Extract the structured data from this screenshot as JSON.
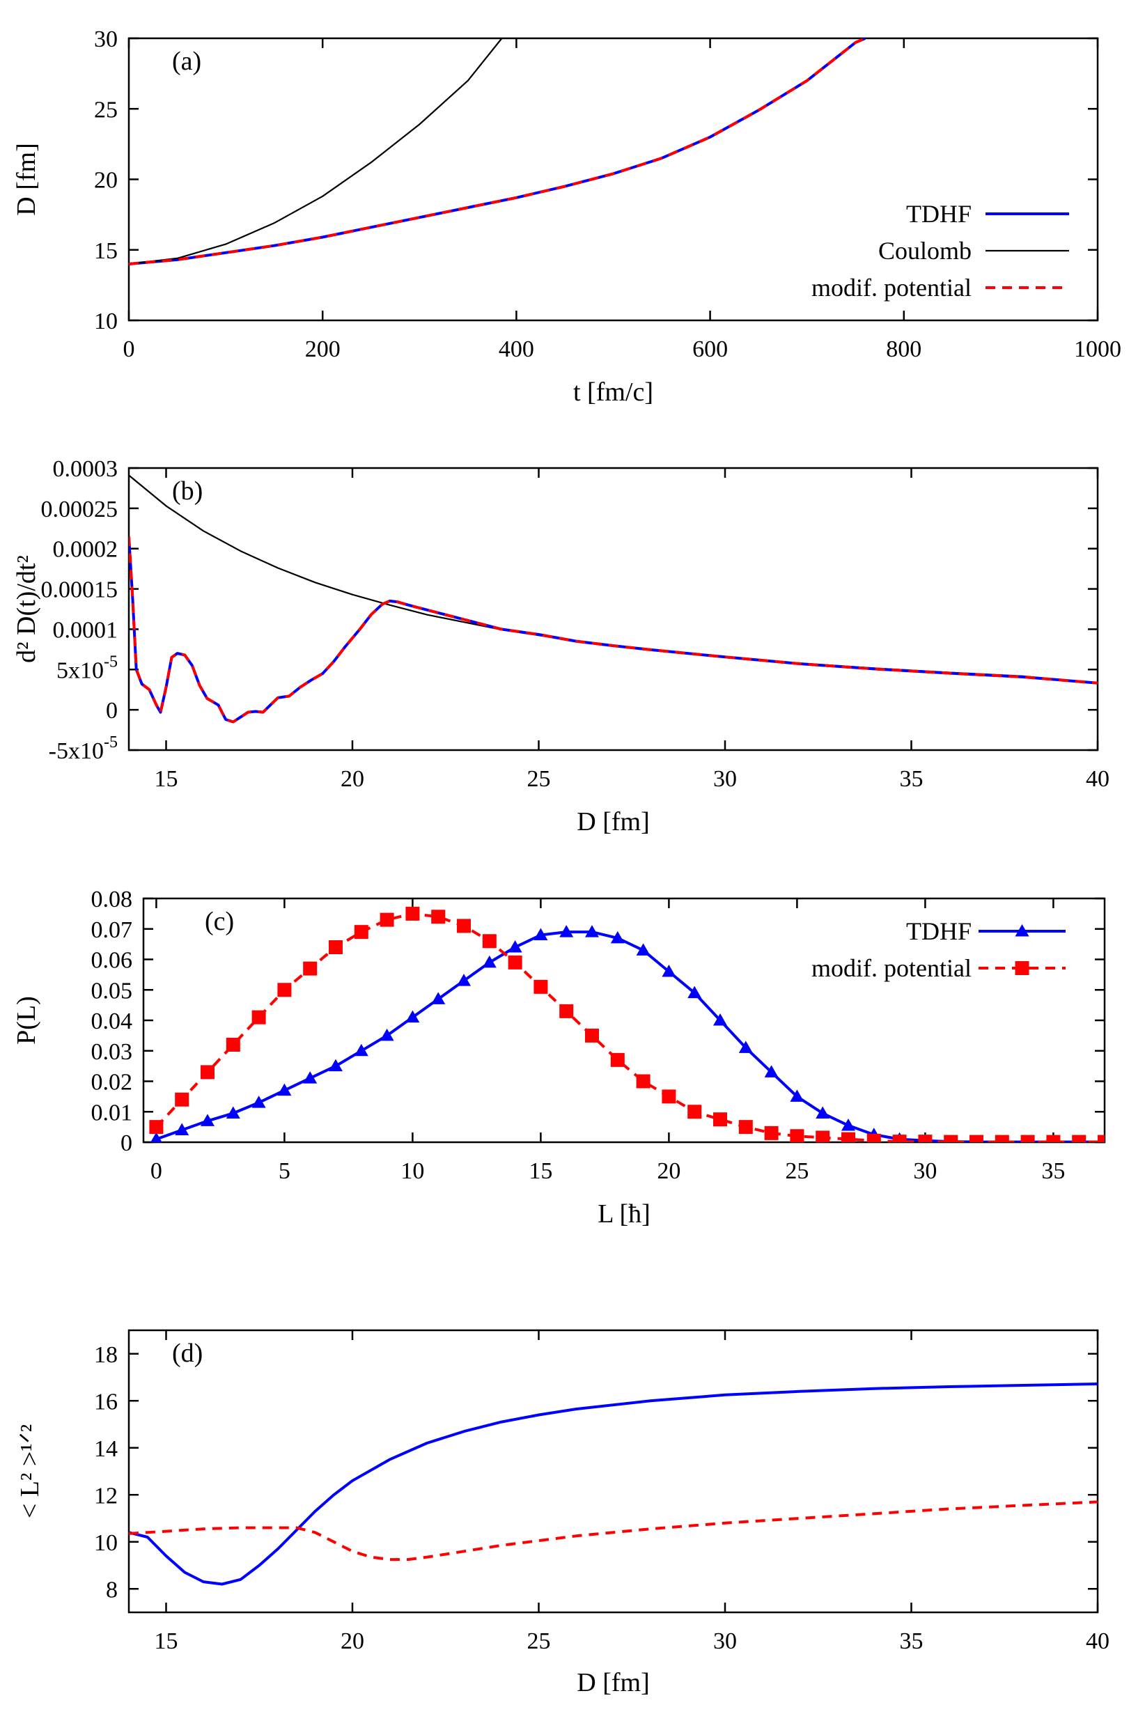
{
  "figure": {
    "colors": {
      "tdhf": "#0000ff",
      "coulomb": "#000000",
      "modif": "#ff0000"
    }
  },
  "chart_data": [
    {
      "id": "a",
      "type": "line",
      "panel_label": "(a)",
      "xlabel": "t [fm/c]",
      "ylabel": "D [fm]",
      "xlim": [
        0,
        1000
      ],
      "ylim": [
        10,
        30
      ],
      "xticks": [
        0,
        200,
        400,
        600,
        800,
        1000
      ],
      "yticks": [
        10,
        15,
        20,
        25,
        30
      ],
      "xtick_labels": [
        "0",
        "200",
        "400",
        "600",
        "800",
        "1000"
      ],
      "ytick_labels": [
        "10",
        "15",
        "20",
        "25",
        "30"
      ],
      "legend_position": "bottom-right",
      "series": [
        {
          "name": "TDHF",
          "style": "solid",
          "x": [
            0,
            50,
            100,
            150,
            200,
            250,
            300,
            350,
            400,
            450,
            500,
            550,
            600,
            650,
            700,
            750,
            760
          ],
          "y": [
            14.0,
            14.3,
            14.8,
            15.3,
            15.9,
            16.6,
            17.3,
            18.0,
            18.7,
            19.5,
            20.4,
            21.5,
            23.0,
            24.9,
            27.0,
            29.7,
            30.0
          ]
        },
        {
          "name": "Coulomb",
          "style": "solid",
          "x": [
            0,
            50,
            100,
            150,
            200,
            250,
            300,
            350,
            385
          ],
          "y": [
            14.0,
            14.4,
            15.4,
            16.9,
            18.8,
            21.2,
            23.9,
            27.0,
            30.0
          ]
        },
        {
          "name": "modif. potential",
          "style": "dashed",
          "x": [
            0,
            50,
            100,
            150,
            200,
            250,
            300,
            350,
            400,
            450,
            500,
            550,
            600,
            650,
            700,
            750,
            760
          ],
          "y": [
            14.0,
            14.3,
            14.8,
            15.3,
            15.9,
            16.6,
            17.3,
            18.0,
            18.7,
            19.5,
            20.4,
            21.5,
            23.0,
            24.9,
            27.0,
            29.7,
            30.0
          ]
        }
      ]
    },
    {
      "id": "b",
      "type": "line",
      "panel_label": "(b)",
      "xlabel": "D [fm]",
      "ylabel": "d² D(t)/dt²",
      "xlim": [
        14,
        40
      ],
      "ylim": [
        -5e-05,
        0.0003
      ],
      "xticks": [
        15,
        20,
        25,
        30,
        35,
        40
      ],
      "yticks": [
        -5e-05,
        0,
        5e-05,
        0.0001,
        0.00015,
        0.0002,
        0.00025,
        0.0003
      ],
      "xtick_labels": [
        "15",
        "20",
        "25",
        "30",
        "35",
        "40"
      ],
      "ytick_labels": [
        "-5x10",
        "0",
        "5x10",
        "0.0001",
        "0.00015",
        "0.0002",
        "0.00025",
        "0.0003"
      ],
      "ytick_exponents": [
        "-5",
        "",
        "-5",
        "",
        "",
        "",
        "",
        ""
      ],
      "series": [
        {
          "name": "Coulomb",
          "style": "solid",
          "x": [
            14,
            15,
            16,
            17,
            18,
            19,
            20,
            21,
            22,
            24,
            26,
            28,
            30,
            32,
            34,
            36,
            38,
            40
          ],
          "y": [
            0.000291,
            0.000253,
            0.000222,
            0.000197,
            0.000176,
            0.000158,
            0.000143,
            0.00013,
            0.000118,
            9.95e-05,
            8.53e-05,
            7.41e-05,
            6.52e-05,
            5.78e-05,
            5.16e-05,
            4.64e-05,
            4.18e-05,
            3.29e-05
          ]
        },
        {
          "name": "TDHF",
          "style": "solid",
          "x": [
            14.0,
            14.1,
            14.2,
            14.35,
            14.55,
            14.75,
            14.85,
            15.0,
            15.15,
            15.3,
            15.5,
            15.7,
            15.9,
            16.1,
            16.4,
            16.6,
            16.8,
            17.0,
            17.2,
            17.4,
            17.6,
            17.8,
            18.0,
            18.3,
            18.6,
            18.9,
            19.2,
            19.5,
            19.8,
            20.2,
            20.5,
            20.8,
            21.0,
            21.2,
            21.5,
            22.0,
            23.0,
            24.0,
            25.0,
            26.0,
            27.0,
            28.0,
            30.0,
            32.0,
            34.0,
            36.0,
            38.0,
            40.0
          ],
          "y": [
            0.000215,
            0.00014,
            5e-05,
            3.2e-05,
            2.5e-05,
            5e-06,
            -3e-06,
            2.8e-05,
            6.5e-05,
            7e-05,
            6.8e-05,
            5.5e-05,
            3e-05,
            1.4e-05,
            6e-06,
            -1.2e-05,
            -1.5e-05,
            -9e-06,
            -3e-06,
            -2e-06,
            -3e-06,
            6e-06,
            1.5e-05,
            1.7e-05,
            2.8e-05,
            3.7e-05,
            4.5e-05,
            6e-05,
            7.8e-05,
            0.0001,
            0.000118,
            0.000131,
            0.000135,
            0.000134,
            0.00013,
            0.000124,
            0.000112,
            0.0001,
            9.35e-05,
            8.52e-05,
            7.95e-05,
            7.45e-05,
            6.55e-05,
            5.72e-05,
            5.08e-05,
            4.55e-05,
            4.07e-05,
            3.32e-05
          ]
        },
        {
          "name": "modif. potential",
          "style": "dashed",
          "x": [
            14.0,
            14.1,
            14.2,
            14.35,
            14.55,
            14.75,
            14.85,
            15.0,
            15.15,
            15.3,
            15.5,
            15.7,
            15.9,
            16.1,
            16.4,
            16.6,
            16.8,
            17.0,
            17.2,
            17.4,
            17.6,
            17.8,
            18.0,
            18.3,
            18.6,
            18.9,
            19.2,
            19.5,
            19.8,
            20.2,
            20.5,
            20.8,
            21.0,
            21.2,
            21.5,
            22.0,
            23.0,
            24.0,
            25.0,
            26.0,
            27.0,
            28.0,
            30.0,
            32.0,
            34.0,
            36.0,
            38.0,
            40.0
          ],
          "y": [
            0.000215,
            0.00014,
            5e-05,
            3.2e-05,
            2.5e-05,
            5e-06,
            -3e-06,
            2.8e-05,
            6.5e-05,
            7e-05,
            6.8e-05,
            5.5e-05,
            3e-05,
            1.4e-05,
            6e-06,
            -1.2e-05,
            -1.5e-05,
            -9e-06,
            -3e-06,
            -2e-06,
            -3e-06,
            6e-06,
            1.5e-05,
            1.7e-05,
            2.8e-05,
            3.7e-05,
            4.5e-05,
            6e-05,
            7.8e-05,
            0.0001,
            0.000118,
            0.000131,
            0.000135,
            0.000134,
            0.00013,
            0.000124,
            0.000112,
            0.0001,
            9.35e-05,
            8.52e-05,
            7.95e-05,
            7.45e-05,
            6.55e-05,
            5.72e-05,
            5.08e-05,
            4.55e-05,
            4.07e-05,
            3.32e-05
          ]
        }
      ]
    },
    {
      "id": "c",
      "type": "line",
      "panel_label": "(c)",
      "xlabel": "L [ħ]",
      "ylabel": "P(L)",
      "xlim": [
        -0.5,
        37
      ],
      "ylim": [
        0,
        0.08
      ],
      "xticks": [
        0,
        5,
        10,
        15,
        20,
        25,
        30,
        35
      ],
      "yticks": [
        0,
        0.01,
        0.02,
        0.03,
        0.04,
        0.05,
        0.06,
        0.07,
        0.08
      ],
      "xtick_labels": [
        "0",
        "5",
        "10",
        "15",
        "20",
        "25",
        "30",
        "35"
      ],
      "ytick_labels": [
        "0",
        "0.01",
        "0.02",
        "0.03",
        "0.04",
        "0.05",
        "0.06",
        "0.07",
        "0.08"
      ],
      "legend_position": "top-right",
      "series": [
        {
          "name": "TDHF",
          "style": "solid",
          "marker": "triangle",
          "x": [
            0,
            1,
            2,
            3,
            4,
            5,
            6,
            7,
            8,
            9,
            10,
            11,
            12,
            13,
            14,
            15,
            16,
            17,
            18,
            19,
            20,
            21,
            22,
            23,
            24,
            25,
            26,
            27,
            28,
            29,
            30,
            31,
            32,
            33,
            34,
            35,
            36,
            37
          ],
          "y": [
            0.001,
            0.004,
            0.007,
            0.0095,
            0.013,
            0.017,
            0.021,
            0.025,
            0.03,
            0.035,
            0.041,
            0.047,
            0.053,
            0.059,
            0.064,
            0.068,
            0.069,
            0.069,
            0.067,
            0.063,
            0.056,
            0.049,
            0.04,
            0.031,
            0.023,
            0.015,
            0.0095,
            0.0055,
            0.0025,
            0.001,
            0.0005,
            0.0002,
            0.0001,
            0.0001,
            0.0001,
            0.0001,
            0.0001,
            0.0001
          ]
        },
        {
          "name": "modif. potential",
          "style": "dashed",
          "marker": "square",
          "x": [
            0,
            1,
            2,
            3,
            4,
            5,
            6,
            7,
            8,
            9,
            10,
            11,
            12,
            13,
            14,
            15,
            16,
            17,
            18,
            19,
            20,
            21,
            22,
            23,
            24,
            25,
            26,
            27,
            28,
            29,
            30,
            31,
            32,
            33,
            34,
            35,
            36,
            37
          ],
          "y": [
            0.005,
            0.014,
            0.023,
            0.032,
            0.041,
            0.05,
            0.057,
            0.064,
            0.069,
            0.073,
            0.075,
            0.074,
            0.071,
            0.066,
            0.059,
            0.051,
            0.043,
            0.035,
            0.027,
            0.02,
            0.015,
            0.01,
            0.0075,
            0.005,
            0.003,
            0.002,
            0.0015,
            0.001,
            0.0005,
            0.0002,
            0.0002,
            0.0001,
            0.0001,
            0.0001,
            0.0001,
            0.0001,
            0.0001,
            0.0001
          ]
        }
      ]
    },
    {
      "id": "d",
      "type": "line",
      "panel_label": "(d)",
      "xlabel": "D [fm]",
      "ylabel": "< L² >¹ᐟ²",
      "xlim": [
        14,
        40
      ],
      "ylim": [
        7,
        19
      ],
      "xticks": [
        15,
        20,
        25,
        30,
        35,
        40
      ],
      "yticks": [
        8,
        10,
        12,
        14,
        16,
        18
      ],
      "xtick_labels": [
        "15",
        "20",
        "25",
        "30",
        "35",
        "40"
      ],
      "ytick_labels": [
        "8",
        "10",
        "12",
        "14",
        "16",
        "18"
      ],
      "series": [
        {
          "name": "TDHF",
          "style": "solid",
          "x": [
            14.0,
            14.5,
            15.0,
            15.5,
            16.0,
            16.5,
            17.0,
            17.5,
            18.0,
            18.5,
            19.0,
            19.5,
            20.0,
            21.0,
            22.0,
            23.0,
            24.0,
            25.0,
            26.0,
            28.0,
            30.0,
            32.0,
            34.0,
            36.0,
            38.0,
            40.0
          ],
          "y": [
            10.4,
            10.2,
            9.4,
            8.7,
            8.3,
            8.2,
            8.4,
            9.0,
            9.7,
            10.5,
            11.3,
            12.0,
            12.6,
            13.5,
            14.2,
            14.7,
            15.1,
            15.4,
            15.65,
            16.0,
            16.25,
            16.4,
            16.52,
            16.6,
            16.66,
            16.72
          ]
        },
        {
          "name": "modif. potential",
          "style": "dashed",
          "x": [
            14.0,
            15.0,
            16.0,
            17.0,
            18.0,
            18.5,
            19.0,
            19.5,
            20.0,
            20.5,
            21.0,
            21.5,
            22.0,
            23.0,
            24.0,
            25.0,
            26.0,
            28.0,
            30.0,
            32.0,
            34.0,
            36.0,
            38.0,
            40.0
          ],
          "y": [
            10.35,
            10.45,
            10.55,
            10.6,
            10.6,
            10.6,
            10.4,
            10.0,
            9.6,
            9.35,
            9.25,
            9.25,
            9.35,
            9.6,
            9.85,
            10.05,
            10.25,
            10.55,
            10.8,
            11.0,
            11.2,
            11.4,
            11.55,
            11.7
          ]
        }
      ]
    }
  ]
}
